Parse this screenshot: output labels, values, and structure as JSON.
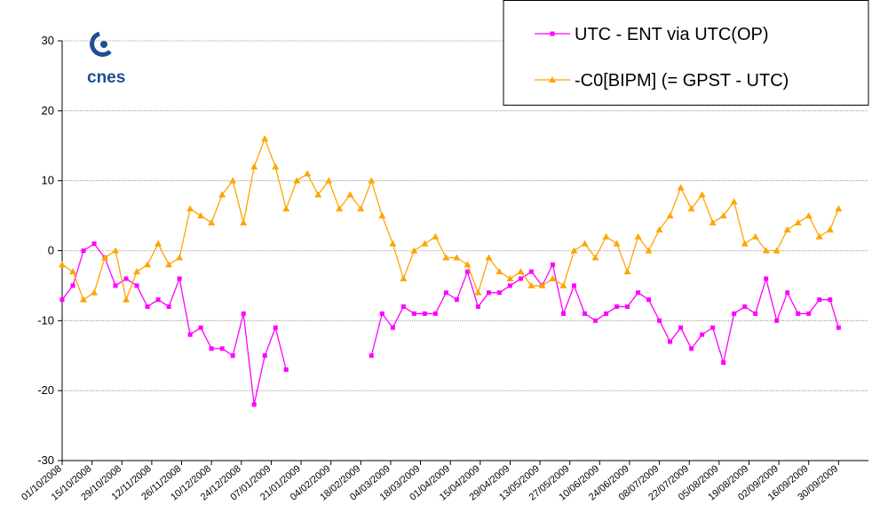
{
  "chart_data": {
    "type": "line",
    "logo": "cnes",
    "x": [
      "01/10/2008",
      "06/10/2008",
      "11/10/2008",
      "16/10/2008",
      "21/10/2008",
      "26/10/2008",
      "31/10/2008",
      "05/11/2008",
      "10/11/2008",
      "15/11/2008",
      "20/11/2008",
      "25/11/2008",
      "30/11/2008",
      "05/12/2008",
      "10/12/2008",
      "15/12/2008",
      "20/12/2008",
      "25/12/2008",
      "30/12/2008",
      "04/01/2009",
      "09/01/2009",
      "14/01/2009",
      "19/01/2009",
      "24/01/2009",
      "29/01/2009",
      "03/02/2009",
      "08/02/2009",
      "13/02/2009",
      "18/02/2009",
      "23/02/2009",
      "28/02/2009",
      "05/03/2009",
      "10/03/2009",
      "15/03/2009",
      "20/03/2009",
      "25/03/2009",
      "30/03/2009",
      "04/04/2009",
      "09/04/2009",
      "14/04/2009",
      "19/04/2009",
      "24/04/2009",
      "29/04/2009",
      "04/05/2009",
      "09/05/2009",
      "14/05/2009",
      "19/05/2009",
      "24/05/2009",
      "29/05/2009",
      "03/06/2009",
      "08/06/2009",
      "13/06/2009",
      "18/06/2009",
      "23/06/2009",
      "28/06/2009",
      "03/07/2009",
      "08/07/2009",
      "13/07/2009",
      "18/07/2009",
      "23/07/2009",
      "28/07/2009",
      "02/08/2009",
      "07/08/2009",
      "12/08/2009",
      "17/08/2009",
      "22/08/2009",
      "27/08/2009",
      "01/09/2009",
      "06/09/2009",
      "11/09/2009",
      "16/09/2009",
      "21/09/2009",
      "26/09/2009",
      "30/09/2009"
    ],
    "series": [
      {
        "name": "UTC - ENT via UTC(OP)",
        "color": "#ff00ff",
        "marker": "square",
        "values": [
          -7,
          -5,
          0,
          1,
          -1,
          -5,
          -4,
          -5,
          -8,
          -7,
          -8,
          -4,
          -12,
          -11,
          -14,
          -14,
          -15,
          -9,
          -22,
          -15,
          -11,
          -17,
          null,
          null,
          null,
          null,
          null,
          null,
          null,
          -15,
          -9,
          -11,
          -8,
          -9,
          -9,
          -9,
          -6,
          -7,
          -3,
          -8,
          -6,
          -6,
          -5,
          -4,
          -3,
          -5,
          -2,
          -9,
          -5,
          -9,
          -10,
          -9,
          -8,
          -8,
          -6,
          -7,
          -10,
          -13,
          -11,
          -14,
          -12,
          -11,
          -16,
          -9,
          -8,
          -9,
          -4,
          -10,
          -6,
          -9,
          -9,
          -7,
          -7,
          -11
        ]
      },
      {
        "name": "-C0[BIPM] (= GPST - UTC)",
        "color": "#ffa500",
        "marker": "triangle",
        "values": [
          -2,
          -3,
          -7,
          -6,
          -1,
          0,
          -7,
          -3,
          -2,
          1,
          -2,
          -1,
          6,
          5,
          4,
          8,
          10,
          4,
          12,
          16,
          12,
          6,
          10,
          11,
          8,
          10,
          6,
          8,
          6,
          10,
          5,
          1,
          -4,
          0,
          1,
          2,
          -1,
          -1,
          -2,
          -6,
          -1,
          -3,
          -4,
          -3,
          -5,
          -5,
          -4,
          -5,
          0,
          1,
          -1,
          2,
          1,
          -3,
          2,
          0,
          3,
          5,
          9,
          6,
          8,
          4,
          5,
          7,
          1,
          2,
          0,
          0,
          3,
          4,
          5,
          2,
          3,
          6
        ]
      }
    ],
    "xlim": [
      "01/10/2008",
      "14/10/2009"
    ],
    "xticks": [
      "01/10/2008",
      "15/10/2008",
      "29/10/2008",
      "12/11/2008",
      "26/11/2008",
      "10/12/2008",
      "24/12/2008",
      "07/01/2009",
      "21/01/2009",
      "04/02/2009",
      "18/02/2009",
      "04/03/2009",
      "18/03/2009",
      "01/04/2009",
      "15/04/2009",
      "29/04/2009",
      "13/05/2009",
      "27/05/2009",
      "10/06/2009",
      "24/06/2009",
      "08/07/2009",
      "22/07/2009",
      "05/08/2009",
      "19/08/2009",
      "02/09/2009",
      "16/09/2009",
      "30/09/2009"
    ],
    "ylim": [
      -30,
      30
    ],
    "yticks": [
      -30,
      -20,
      -10,
      0,
      10,
      20,
      30
    ],
    "grid": true,
    "legend": "top-right"
  }
}
